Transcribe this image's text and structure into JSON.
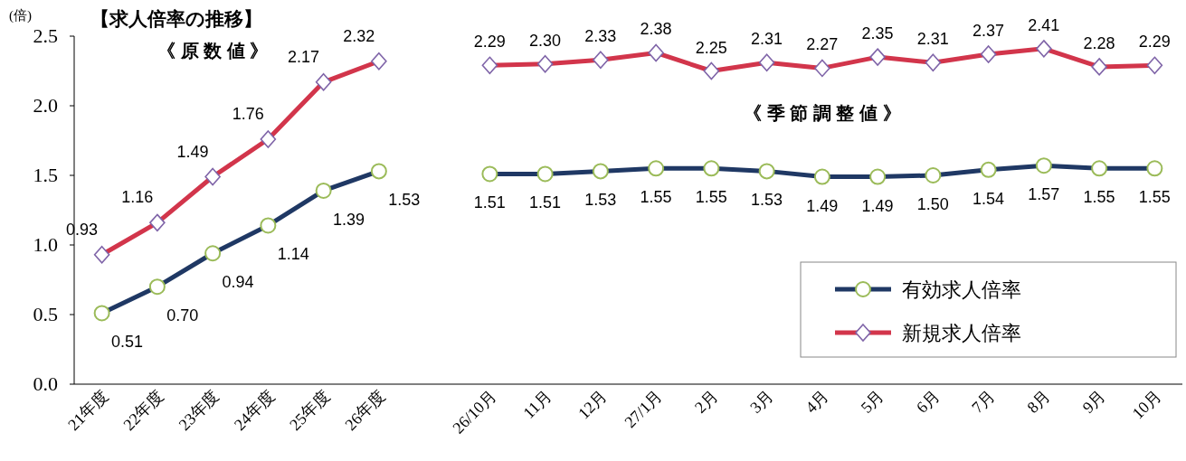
{
  "chart_data": {
    "type": "line",
    "title": "【求人倍率の推移】",
    "ylabel": "(倍)",
    "annotations": [
      "《 原 数 値 》",
      "《 季 節 調 整 値 》"
    ],
    "categories": [
      "21年度",
      "22年度",
      "23年度",
      "24年度",
      "25年度",
      "26年度",
      null,
      "26/10月",
      "11月",
      "12月",
      "27/1月",
      "2月",
      "3月",
      "4月",
      "5月",
      "6月",
      "7月",
      "8月",
      "9月",
      "10月"
    ],
    "series": [
      {
        "name": "有効求人倍率",
        "color": "#1f3864",
        "marker": "circle",
        "values": [
          0.51,
          0.7,
          0.94,
          1.14,
          1.39,
          1.53,
          null,
          1.51,
          1.51,
          1.53,
          1.55,
          1.55,
          1.53,
          1.49,
          1.49,
          1.5,
          1.54,
          1.57,
          1.55,
          1.55
        ],
        "value_labels": [
          "0.51",
          "0.70",
          "0.94",
          "1.14",
          "1.39",
          "1.53",
          null,
          "1.51",
          "1.51",
          "1.53",
          "1.55",
          "1.55",
          "1.53",
          "1.49",
          "1.49",
          "1.50",
          "1.54",
          "1.57",
          "1.55",
          "1.55"
        ]
      },
      {
        "name": "新規求人倍率",
        "color": "#d2354b",
        "marker": "diamond",
        "values": [
          0.93,
          1.16,
          1.49,
          1.76,
          2.17,
          2.32,
          null,
          2.29,
          2.3,
          2.33,
          2.38,
          2.25,
          2.31,
          2.27,
          2.35,
          2.31,
          2.37,
          2.41,
          2.28,
          2.29
        ],
        "value_labels": [
          "0.93",
          "1.16",
          "1.49",
          "1.76",
          "2.17",
          "2.32",
          null,
          "2.29",
          "2.30",
          "2.33",
          "2.38",
          "2.25",
          "2.31",
          "2.27",
          "2.35",
          "2.31",
          "2.37",
          "2.41",
          "2.28",
          "2.29"
        ]
      }
    ],
    "ylim": [
      0,
      2.5
    ],
    "yticks": [
      {
        "value": 0,
        "label": "0.0"
      },
      {
        "value": 0.5,
        "label": "0.5"
      },
      {
        "value": 1,
        "label": "1.0"
      },
      {
        "value": 1.5,
        "label": "1.5"
      },
      {
        "value": 2,
        "label": "2.0"
      },
      {
        "value": 2.5,
        "label": "2.5"
      }
    ],
    "grid": false,
    "legend": "right"
  }
}
